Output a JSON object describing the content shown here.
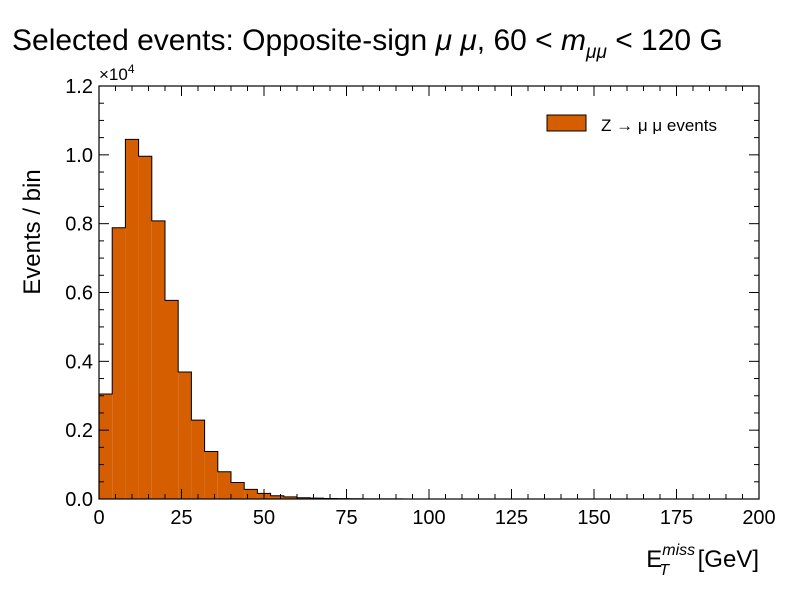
{
  "chart_data": {
    "type": "bar",
    "title_prefix": "Selected events: Opposite-sign ",
    "title_mu": "μ μ",
    "title_range_start": ", 60 < ",
    "title_m": "m",
    "title_m_sub": "μμ",
    "title_range_end": " < 120 G",
    "xlabel_main": "E",
    "xlabel_sup": "miss",
    "xlabel_sub": "T",
    "xlabel_unit": " [GeV]",
    "ylabel": "Events / bin",
    "y_multiplier_base": "×10",
    "y_multiplier_exp": "4",
    "xlim": [
      0,
      200
    ],
    "ylim": [
      0,
      12000
    ],
    "x_ticks": [
      0,
      25,
      50,
      75,
      100,
      125,
      150,
      175,
      200
    ],
    "y_ticks": [
      0,
      2000,
      4000,
      6000,
      8000,
      10000,
      12000
    ],
    "y_tick_labels": [
      "0.0",
      "0.2",
      "0.4",
      "0.6",
      "0.8",
      "1.0",
      "1.2"
    ],
    "bin_edges": [
      0,
      4,
      8,
      12,
      16,
      20,
      24,
      28,
      32,
      36,
      40,
      44,
      48,
      52,
      56,
      60,
      64,
      68,
      72,
      76,
      80,
      84,
      88,
      92,
      96,
      100,
      104,
      108,
      112,
      116,
      120,
      124,
      128,
      132,
      136,
      140,
      144,
      148,
      152,
      156,
      160,
      164,
      168,
      172,
      176,
      180,
      184,
      188,
      192,
      196,
      200
    ],
    "series": [
      {
        "name": "Z → μ μ events",
        "color": "#d55e00",
        "values": [
          3050,
          7880,
          10450,
          9960,
          8080,
          5770,
          3690,
          2290,
          1380,
          790,
          480,
          280,
          165,
          95,
          60,
          38,
          24,
          15,
          10,
          6,
          4,
          3,
          2,
          1,
          1,
          1,
          0,
          0,
          0,
          0,
          0,
          0,
          0,
          0,
          0,
          0,
          0,
          0,
          0,
          0,
          0,
          0,
          0,
          0,
          0,
          0,
          0,
          0,
          0,
          0
        ]
      }
    ],
    "legend_position": "top-right",
    "grid": false
  }
}
